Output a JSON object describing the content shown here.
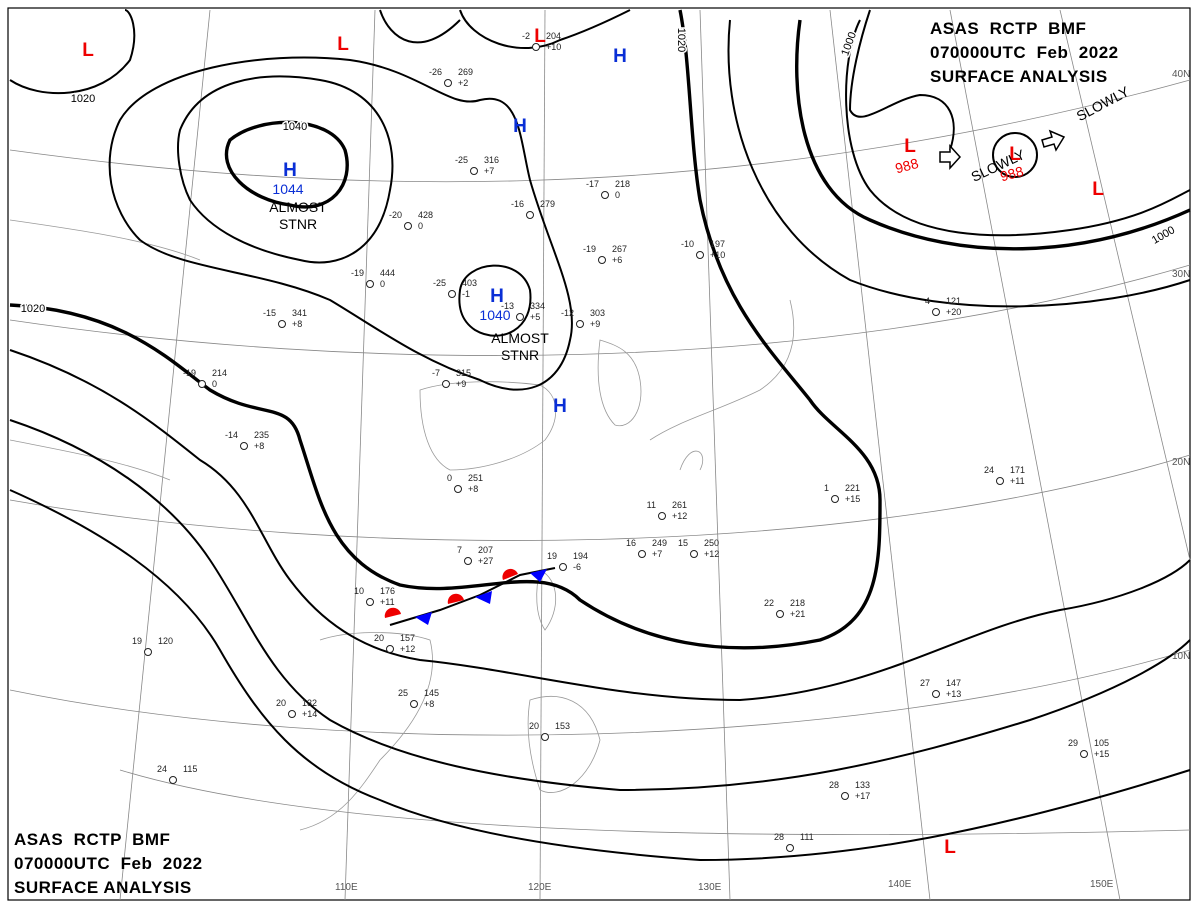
{
  "header": {
    "lines": [
      "ASAS  RCTP  BMF",
      "070000UTC  Feb  2022",
      "SURFACE ANALYSIS"
    ]
  },
  "isobar_labels": [
    "1020",
    "1040",
    "1020",
    "1020",
    "1000",
    "1000"
  ],
  "pressure_systems": [
    {
      "symbol": "H",
      "value": "1044"
    },
    {
      "symbol": "H",
      "value": "1040"
    },
    {
      "symbol": "H"
    },
    {
      "symbol": "H"
    },
    {
      "symbol": "H"
    },
    {
      "symbol": "L"
    },
    {
      "symbol": "L"
    },
    {
      "symbol": "L"
    },
    {
      "symbol": "L",
      "value": "988"
    },
    {
      "symbol": "L",
      "value": "988"
    },
    {
      "symbol": "L"
    },
    {
      "symbol": "L"
    }
  ],
  "annotations": [
    {
      "lines": [
        "ALMOST",
        "STNR"
      ]
    },
    {
      "lines": [
        "ALMOST",
        "STNR"
      ]
    },
    {
      "lines": [
        "SLOWLY"
      ]
    },
    {
      "lines": [
        "SLOWLY"
      ]
    }
  ],
  "latitude_labels": [
    "40N",
    "30N",
    "20N",
    "10N"
  ],
  "longitude_labels": [
    "110E",
    "120E",
    "130E",
    "140E",
    "150E"
  ],
  "stations": [
    {
      "temp": "-26",
      "pressure": "269",
      "tendency": "+2"
    },
    {
      "temp": "-25",
      "pressure": "316",
      "tendency": "+7"
    },
    {
      "temp": "-16",
      "pressure": "279"
    },
    {
      "temp": "-20",
      "pressure": "428",
      "tendency": "0"
    },
    {
      "temp": "-19",
      "pressure": "444",
      "tendency": "0"
    },
    {
      "temp": "-25",
      "pressure": "403",
      "tendency": "-1"
    },
    {
      "temp": "-13",
      "pressure": "334",
      "tendency": "+5"
    },
    {
      "temp": "-12",
      "pressure": "303",
      "tendency": "+9"
    },
    {
      "temp": "-15",
      "pressure": "341",
      "tendency": "+8"
    },
    {
      "temp": "-19",
      "pressure": "214",
      "tendency": "0"
    },
    {
      "temp": "-14",
      "pressure": "235",
      "tendency": "+8"
    },
    {
      "temp": "-7",
      "pressure": "315",
      "tendency": "+9"
    },
    {
      "temp": "0",
      "pressure": "251",
      "tendency": "+8"
    },
    {
      "temp": "7",
      "pressure": "207",
      "tendency": "+27"
    },
    {
      "temp": "10",
      "pressure": "176",
      "tendency": "+11"
    },
    {
      "temp": "20",
      "pressure": "157",
      "tendency": "+12"
    },
    {
      "temp": "25",
      "pressure": "145",
      "tendency": "+8"
    },
    {
      "temp": "20",
      "pressure": "132",
      "tendency": "+14"
    },
    {
      "temp": "19",
      "pressure": "120"
    },
    {
      "temp": "24",
      "pressure": "115"
    },
    {
      "temp": "11",
      "pressure": "261",
      "tendency": "+12"
    },
    {
      "temp": "16",
      "pressure": "249",
      "tendency": "+7"
    },
    {
      "temp": "15",
      "pressure": "250",
      "tendency": "+12"
    },
    {
      "temp": "19",
      "pressure": "194",
      "tendency": "-6"
    },
    {
      "temp": "22",
      "pressure": "218",
      "tendency": "+21"
    },
    {
      "temp": "27",
      "pressure": "147",
      "tendency": "+13"
    },
    {
      "temp": "29",
      "pressure": "105",
      "tendency": "+15"
    },
    {
      "temp": "28",
      "pressure": "133",
      "tendency": "+17"
    },
    {
      "temp": "28",
      "pressure": "111"
    },
    {
      "temp": "-17",
      "pressure": "218",
      "tendency": "0"
    },
    {
      "temp": "-19",
      "pressure": "267",
      "tendency": "+6"
    },
    {
      "temp": "-10",
      "pressure": "197",
      "tendency": "+10"
    },
    {
      "temp": "1",
      "pressure": "221",
      "tendency": "+15"
    },
    {
      "temp": "24",
      "pressure": "171",
      "tendency": "+11"
    },
    {
      "temp": "4",
      "pressure": "121",
      "tendency": "+20"
    },
    {
      "temp": "-2",
      "pressure": "204",
      "tendency": "+10"
    },
    {
      "temp": "20",
      "pressure": "153"
    }
  ]
}
